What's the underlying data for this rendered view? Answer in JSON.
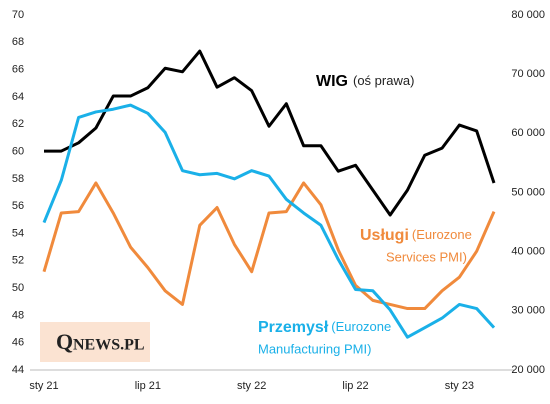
{
  "chart_data": {
    "type": "line",
    "categories": [
      "sty 21",
      null,
      null,
      null,
      null,
      null,
      "lip 21",
      null,
      null,
      null,
      null,
      null,
      "sty 22",
      null,
      null,
      null,
      null,
      null,
      "lip 22",
      null,
      null,
      null,
      null,
      null,
      "sty 23",
      null,
      null
    ],
    "ylim": [
      44,
      70
    ],
    "yticks": [
      44,
      46,
      48,
      50,
      52,
      54,
      56,
      58,
      60,
      62,
      64,
      66,
      68,
      70
    ],
    "y2lim": [
      20000,
      80000
    ],
    "y2ticks": [
      {
        "value": 20000,
        "label": "20 000"
      },
      {
        "value": 30000,
        "label": "30 000"
      },
      {
        "value": 40000,
        "label": "40 000"
      },
      {
        "value": 50000,
        "label": "50 000"
      },
      {
        "value": 60000,
        "label": "60 000"
      },
      {
        "value": 70000,
        "label": "70 000"
      },
      {
        "value": 80000,
        "label": "80 000"
      }
    ],
    "grid": false,
    "series": [
      {
        "name": "WIG",
        "color": "#000000",
        "axis": "y2",
        "values": [
          57000,
          57000,
          58400,
          60900,
          66300,
          66300,
          67700,
          71000,
          70400,
          73900,
          67800,
          69400,
          67200,
          61200,
          65000,
          57900,
          57900,
          53600,
          54600,
          50400,
          46200,
          50400,
          56300,
          57500,
          61400,
          60400,
          51600
        ]
      },
      {
        "name": "Usługi",
        "color": "#f08a3c",
        "values": [
          51.2,
          55.5,
          55.6,
          57.7,
          55.5,
          53.0,
          51.5,
          49.8,
          48.8,
          54.6,
          55.9,
          53.2,
          51.2,
          55.5,
          55.6,
          57.7,
          56.1,
          52.8,
          50.2,
          49.1,
          48.8,
          48.5,
          48.5,
          49.8,
          50.8,
          52.7,
          55.6
        ]
      },
      {
        "name": "Przemysł",
        "color": "#1ab0e8",
        "values": [
          54.8,
          57.9,
          62.5,
          62.9,
          63.1,
          63.4,
          62.8,
          61.4,
          58.6,
          58.3,
          58.4,
          58.0,
          58.6,
          58.2,
          56.5,
          55.5,
          54.6,
          52.1,
          49.9,
          49.8,
          48.4,
          46.4,
          47.1,
          47.8,
          48.8,
          48.5,
          47.1
        ]
      }
    ],
    "annotations": [
      {
        "bold": "WIG",
        "lines": [
          "(oś prawa)"
        ]
      },
      {
        "bold": "Usługi",
        "lines": [
          "(Eurozone",
          "Services PMI)"
        ]
      },
      {
        "bold": "Przemysł",
        "lines": [
          "(Eurozone",
          "Manufacturing PMI)"
        ]
      }
    ],
    "logo": {
      "initial": "Q",
      "rest": "NEWS.PL"
    }
  }
}
